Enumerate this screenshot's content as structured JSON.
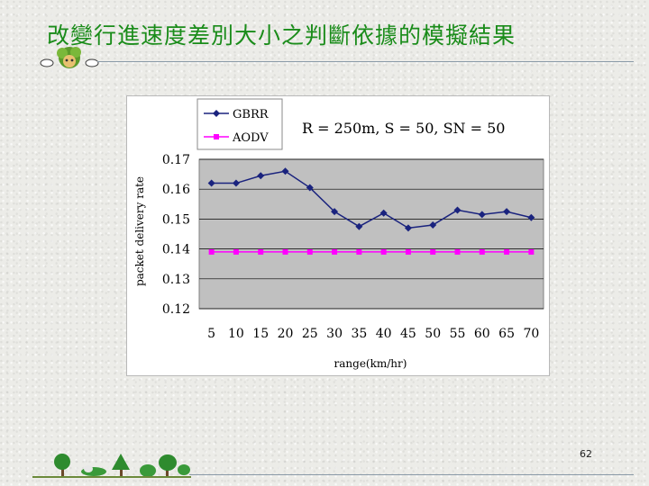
{
  "slide": {
    "title": "改變行進速度差別大小之判斷依據的模擬結果",
    "page_number": "62"
  },
  "colors": {
    "title": "#1a8c1a",
    "plot_background": "#c0c0c0",
    "gbrr_series": "#1a237e",
    "aodv_series": "#ff00ff"
  },
  "icons": {
    "mascot": "tree-mascot-icon",
    "footer": "tree-row-icon"
  },
  "chart_data": {
    "type": "line",
    "title": "R = 250m, S = 50, SN = 50",
    "xlabel": "range(km/hr)",
    "ylabel": "packet delivery rate",
    "x": [
      5,
      10,
      15,
      20,
      25,
      30,
      35,
      40,
      45,
      50,
      55,
      60,
      65,
      70
    ],
    "xticks": [
      "5",
      "10",
      "15",
      "20",
      "25",
      "30",
      "35",
      "40",
      "45",
      "50",
      "55",
      "60",
      "65",
      "70"
    ],
    "ylim": [
      0.12,
      0.17
    ],
    "yticks": [
      "0.17",
      "0.16",
      "0.15",
      "0.14",
      "0.13",
      "0.12"
    ],
    "grid": true,
    "legend_position": "top-left",
    "series": [
      {
        "name": "GBRR",
        "marker": "diamond",
        "values": [
          0.162,
          0.162,
          0.1645,
          0.166,
          0.1605,
          0.1525,
          0.1475,
          0.152,
          0.147,
          0.148,
          0.153,
          0.1515,
          0.1525,
          0.1505
        ]
      },
      {
        "name": "AODV",
        "marker": "square",
        "values": [
          0.139,
          0.139,
          0.139,
          0.139,
          0.139,
          0.139,
          0.139,
          0.139,
          0.139,
          0.139,
          0.139,
          0.139,
          0.139,
          0.139
        ]
      }
    ]
  }
}
